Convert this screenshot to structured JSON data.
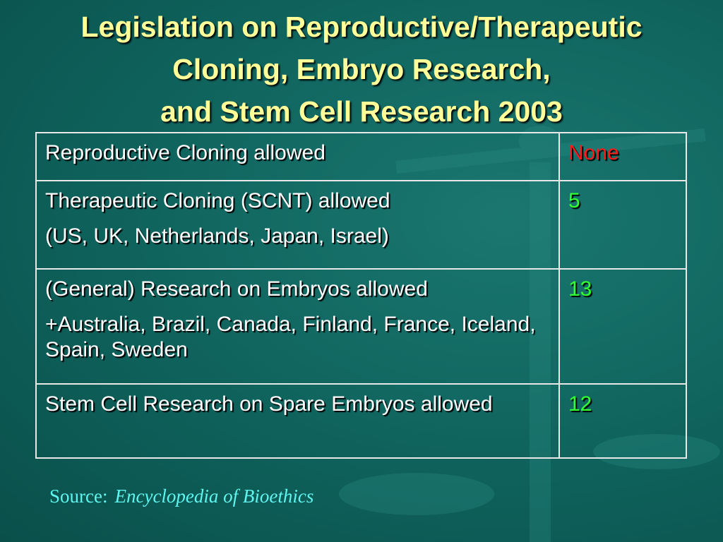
{
  "title": {
    "lines": [
      "Legislation on Reproductive/Therapeutic",
      "Cloning, Embryo Research,",
      "and Stem Cell Research 2003"
    ]
  },
  "table": {
    "rows": [
      {
        "label": [
          "Reproductive Cloning allowed"
        ],
        "value": "None"
      },
      {
        "label": [
          "Therapeutic Cloning (SCNT) allowed",
          "(US, UK, Netherlands, Japan, Israel)"
        ],
        "value": "5"
      },
      {
        "label": [
          "(General) Research on Embryos allowed",
          "+Australia, Brazil, Canada, Finland, France, Iceland, Spain, Sweden"
        ],
        "value": "13"
      },
      {
        "label": [
          "Stem Cell Research on Spare Embryos allowed"
        ],
        "value": "12"
      }
    ]
  },
  "source": {
    "label": "Source:",
    "text": "Encyclopedia of Bioethics"
  }
}
